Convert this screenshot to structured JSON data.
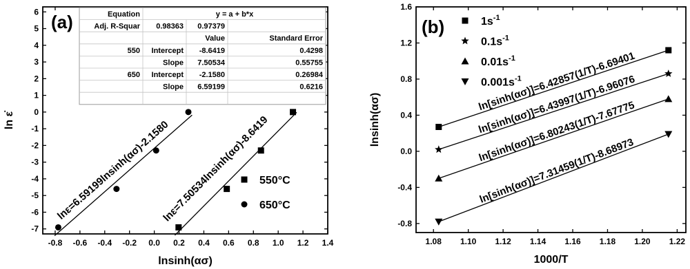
{
  "chart_data": [
    {
      "type": "scatter",
      "panel_label": "(a)",
      "xlabel": "lnsinh(ασ)",
      "ylabel": "ln ε̇",
      "xlim": [
        -0.9,
        1.4
      ],
      "ylim": [
        -7.3,
        6.3
      ],
      "xticks": [
        "-0.8",
        "-0.6",
        "-0.4",
        "-0.2",
        "0.0",
        "0.2",
        "0.4",
        "0.6",
        "0.8",
        "1.0",
        "1.2",
        "1.4"
      ],
      "yticks": [
        "-7",
        "-6",
        "-5",
        "-4",
        "-3",
        "-2",
        "-1",
        "0",
        "1",
        "2",
        "3",
        "4",
        "5",
        "6"
      ],
      "series": [
        {
          "name": "550°C",
          "marker": "square",
          "x": [
            0.196,
            0.585,
            0.861,
            1.119
          ],
          "y": [
            -6.908,
            -4.605,
            -2.303,
            0.0
          ],
          "fit_label": "lnε=7.50534lnsinh(ασ)-8.6419"
        },
        {
          "name": "650°C",
          "marker": "circle",
          "x": [
            -0.775,
            -0.305,
            0.015,
            0.275
          ],
          "y": [
            -6.908,
            -4.605,
            -2.303,
            0.0
          ],
          "fit_label": "lnε=6.59199lnsinh(ασ)-2.1580"
        }
      ],
      "table": {
        "header": [
          [
            "Equation",
            "y = a + b*x"
          ],
          [
            "Adj. R-Squar",
            "0.98363",
            "0.97379"
          ]
        ],
        "col_headers": [
          "Value",
          "Standard Error"
        ],
        "rows": [
          [
            "550",
            "Intercept",
            "-8.6419",
            "0.4298"
          ],
          [
            "",
            "Slope",
            "7.50534",
            "0.55755"
          ],
          [
            "650",
            "Intercept",
            "-2.1580",
            "0.26984"
          ],
          [
            "",
            "Slope",
            "6.59199",
            "0.6216"
          ]
        ]
      }
    },
    {
      "type": "scatter",
      "panel_label": "(b)",
      "xlabel": "1000/T",
      "ylabel": "lnsinh(ασ)",
      "xlim": [
        1.07,
        1.225
      ],
      "ylim": [
        -0.9,
        1.6
      ],
      "xticks": [
        "1.08",
        "1.10",
        "1.12",
        "1.14",
        "1.16",
        "1.18",
        "1.20",
        "1.22"
      ],
      "yticks": [
        "-0.8",
        "-0.4",
        "0.0",
        "0.4",
        "0.8",
        "1.2",
        "1.6"
      ],
      "series": [
        {
          "name": "1s",
          "sup": "-1",
          "marker": "square",
          "x": [
            1.083,
            1.215
          ],
          "y": [
            0.27,
            1.12
          ],
          "fit_label": "ln[sinh(ασ)]=6.42857(1/T)-6.69401"
        },
        {
          "name": "0.1s",
          "sup": "-1",
          "marker": "star",
          "x": [
            1.083,
            1.215
          ],
          "y": [
            0.02,
            0.86
          ],
          "fit_label": "ln[sinh(ασ)]=6.43997(1/T)-6.96076"
        },
        {
          "name": "0.01s",
          "sup": "-1",
          "marker": "triangle-up",
          "x": [
            1.083,
            1.215
          ],
          "y": [
            -0.3,
            0.58
          ],
          "fit_label": "ln[sinh(ασ)]=6.80243(1/T)-7.67775"
        },
        {
          "name": "0.001s",
          "sup": "-1",
          "marker": "triangle-down",
          "x": [
            1.083,
            1.215
          ],
          "y": [
            -0.78,
            0.19
          ],
          "fit_label": "ln[sinh(ασ)]=7.31459(1/T)-8.68973"
        }
      ]
    }
  ]
}
